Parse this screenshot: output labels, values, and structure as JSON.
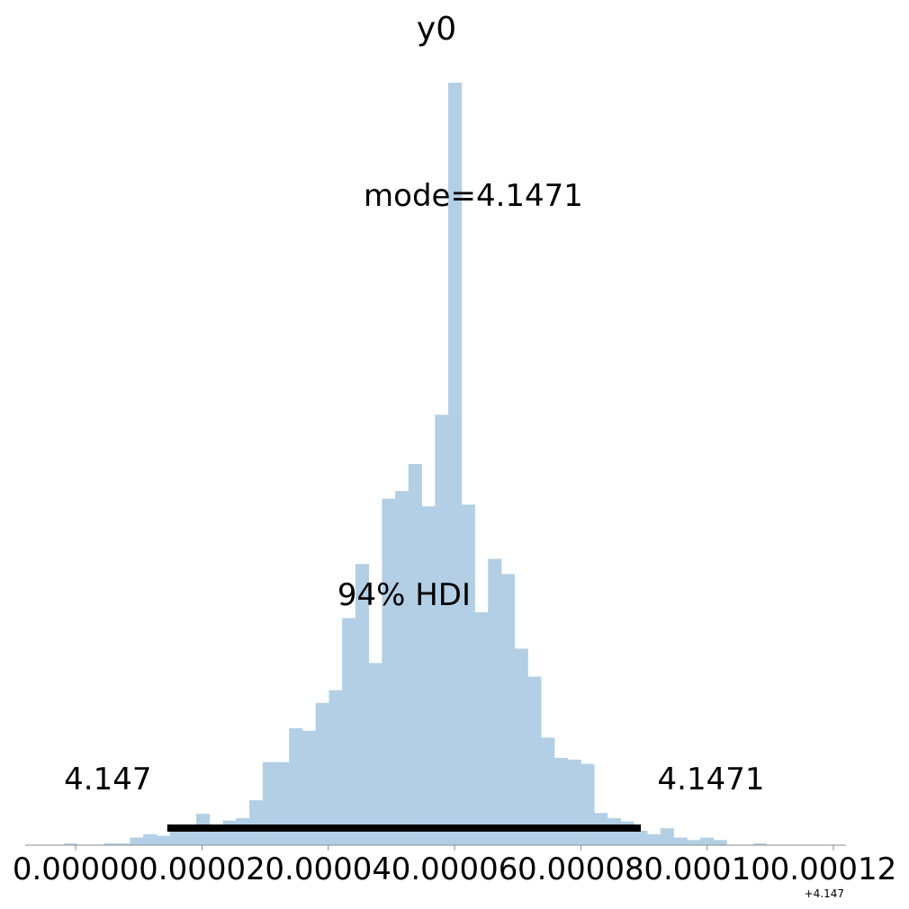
{
  "chart_data": {
    "type": "bar",
    "title": "y0",
    "xlabel": "",
    "ylabel": "",
    "x_offset_label": "+4.147",
    "x_offset_value": 4.147,
    "x_ticks": [
      0.0,
      2e-05,
      4e-05,
      6e-05,
      8e-05,
      0.0001,
      0.00012
    ],
    "x_tick_labels": [
      "0.00000",
      "0.00002",
      "0.00004",
      "0.00006",
      "0.00008",
      "0.00010",
      "0.00012"
    ],
    "xlim": [
      -8e-06,
      0.000122
    ],
    "ylim": [
      0,
      900
    ],
    "grid": false,
    "bins": {
      "start": -1.9e-06,
      "width": 2.1e-06,
      "counts": [
        2,
        0,
        0,
        2,
        2,
        9,
        13,
        11,
        20,
        18,
        37,
        24,
        29,
        32,
        53,
        98,
        98,
        138,
        135,
        168,
        183,
        268,
        332,
        215,
        409,
        418,
        450,
        400,
        508,
        900,
        402,
        275,
        338,
        320,
        232,
        199,
        127,
        103,
        101,
        96,
        38,
        32,
        28,
        17,
        13,
        20,
        9,
        6,
        9,
        6,
        0,
        0,
        2,
        0
      ]
    },
    "bar_color": "#b2cfe5",
    "mode_label": "mode=4.1471",
    "hdi": {
      "label": "94% HDI",
      "lower": 1.45e-05,
      "upper": 8.95e-05,
      "lower_label": "4.147",
      "upper_label": "4.1471",
      "color": "#000000"
    }
  }
}
